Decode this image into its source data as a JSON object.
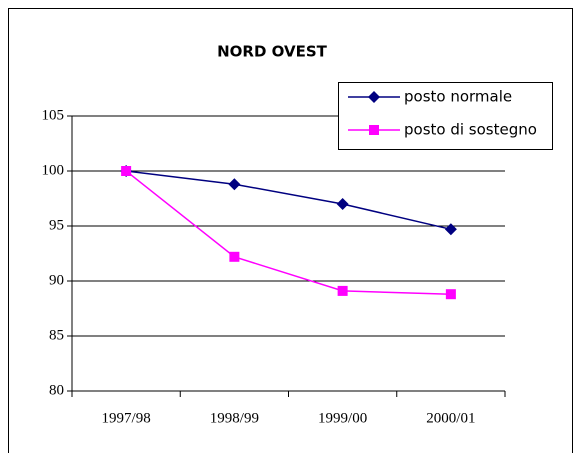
{
  "chart_data": {
    "type": "line",
    "title": "NORD OVEST",
    "categories": [
      "1997/98",
      "1998/99",
      "1999/00",
      "2000/01"
    ],
    "series": [
      {
        "name": "posto normale",
        "color": "#000080",
        "marker": "diamond",
        "values": [
          100,
          98.8,
          97,
          94.7
        ]
      },
      {
        "name": "posto di sostegno",
        "color": "#ff00ff",
        "marker": "square",
        "values": [
          100,
          92.2,
          89.1,
          88.8
        ]
      }
    ],
    "ylim": [
      80,
      105
    ],
    "yticks": [
      80,
      85,
      90,
      95,
      100,
      105
    ],
    "grid": true,
    "legend": "top-right"
  }
}
